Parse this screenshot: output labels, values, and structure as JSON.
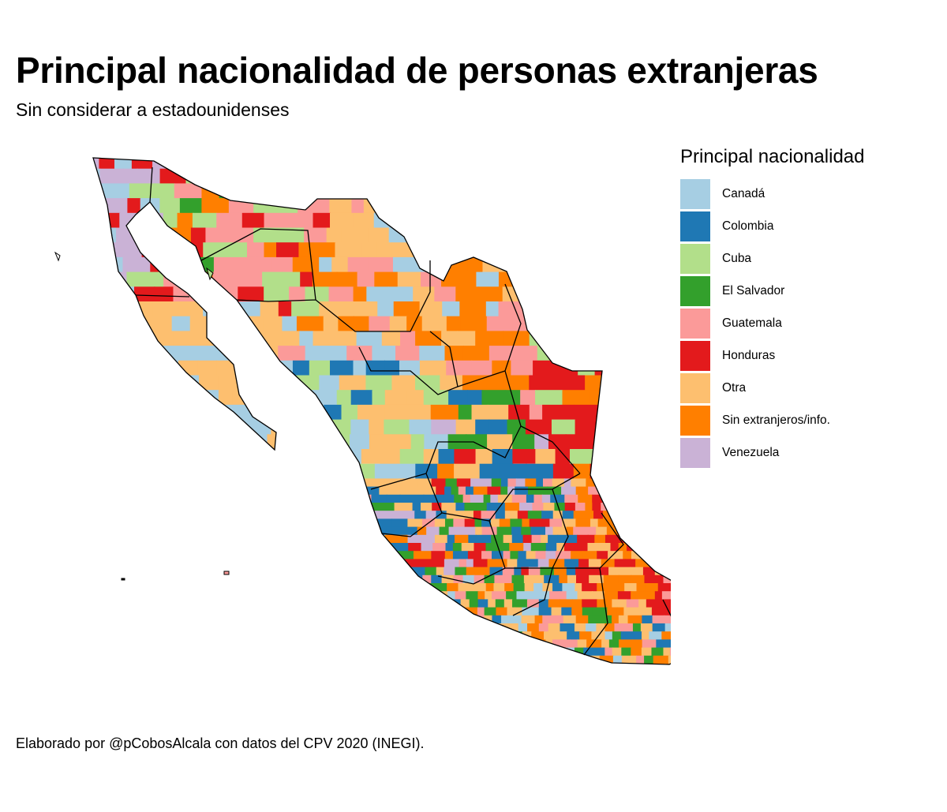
{
  "title": "Principal nacionalidad de personas extranjeras",
  "subtitle": "Sin considerar a estadounidenses",
  "legend": {
    "title": "Principal nacionalidad",
    "items": [
      {
        "label": "Canadá",
        "color": "#a6cee3"
      },
      {
        "label": "Colombia",
        "color": "#1f78b4"
      },
      {
        "label": "Cuba",
        "color": "#b2df8a"
      },
      {
        "label": "El Salvador",
        "color": "#33a02c"
      },
      {
        "label": "Guatemala",
        "color": "#fb9a99"
      },
      {
        "label": "Honduras",
        "color": "#e31a1c"
      },
      {
        "label": "Otra",
        "color": "#fdbf6f"
      },
      {
        "label": "Sin extranjeros/info.",
        "color": "#ff7f00"
      },
      {
        "label": "Venezuela",
        "color": "#cab2d6"
      }
    ]
  },
  "caption": "Elaborado por @pCobosAlcala con datos del CPV 2020 (INEGI).",
  "map": {
    "type": "choropleth",
    "region": "Mexico (municipios)",
    "state_border_color": "#000000",
    "dominant_categories": {
      "baja_california": [
        "Venezuela",
        "Honduras",
        "Canadá",
        "Cuba"
      ],
      "baja_california_sur": [
        "Otra",
        "Canadá"
      ],
      "sonora": [
        "Guatemala",
        "Cuba",
        "Sin extranjeros/info.",
        "El Salvador",
        "Honduras"
      ],
      "chihuahua": [
        "Otra",
        "Canadá",
        "Sin extranjeros/info.",
        "Guatemala"
      ],
      "coahuila": [
        "Sin extranjeros/info.",
        "Canadá",
        "Otra",
        "Guatemala"
      ],
      "nuevo_leon": [
        "Honduras",
        "Guatemala",
        "Cuba"
      ],
      "tamaulipas": [
        "Honduras",
        "Cuba",
        "Sin extranjeros/info."
      ],
      "sinaloa_durango": [
        "Otra",
        "Colombia",
        "Canadá",
        "Cuba"
      ],
      "centro": [
        "Colombia",
        "El Salvador",
        "Sin extranjeros/info.",
        "Otra",
        "Guatemala",
        "Honduras",
        "Venezuela"
      ],
      "veracruz": [
        "Sin extranjeros/info.",
        "Honduras",
        "Otra",
        "Guatemala"
      ],
      "oaxaca_guerrero": [
        "Otra",
        "Sin extranjeros/info.",
        "Guatemala",
        "El Salvador",
        "Colombia",
        "Canadá"
      ],
      "chiapas": [
        "Guatemala",
        "Honduras"
      ],
      "tabasco": [
        "Honduras",
        "Guatemala"
      ],
      "yucatan_peninsula": [
        "Guatemala",
        "Otra",
        "Canadá",
        "Venezuela",
        "Honduras"
      ]
    }
  }
}
